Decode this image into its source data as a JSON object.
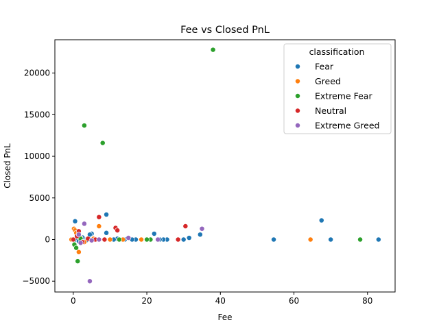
{
  "chart_data": {
    "type": "scatter",
    "title": "Fee vs Closed PnL",
    "xlabel": "Fee",
    "ylabel": "Closed PnL",
    "xlim": [
      -5,
      87.5
    ],
    "ylim": [
      -6300,
      24000
    ],
    "xticks": [
      0,
      20,
      40,
      60,
      80
    ],
    "yticks": [
      -5000,
      0,
      5000,
      10000,
      15000,
      20000
    ],
    "grid": false,
    "legend": {
      "title": "classification",
      "placement": "top-right"
    },
    "series": [
      {
        "name": "Fear",
        "color": "#1f77b4",
        "points": [
          [
            0.5,
            2200
          ],
          [
            9,
            3000
          ],
          [
            67.5,
            2300
          ],
          [
            54.5,
            0
          ],
          [
            70,
            0
          ],
          [
            83,
            0
          ],
          [
            22,
            700
          ],
          [
            34.5,
            600
          ],
          [
            31.5,
            200
          ],
          [
            30,
            0
          ],
          [
            25.5,
            0
          ],
          [
            24.5,
            0
          ],
          [
            23.5,
            0
          ],
          [
            17,
            0
          ],
          [
            16,
            0
          ],
          [
            14,
            0
          ],
          [
            12,
            100
          ],
          [
            11,
            0
          ],
          [
            9,
            800
          ],
          [
            7,
            0
          ],
          [
            6,
            50
          ],
          [
            5,
            700
          ],
          [
            4.5,
            600
          ],
          [
            4,
            0
          ],
          [
            3,
            0
          ],
          [
            2,
            -50
          ],
          [
            1,
            300
          ],
          [
            0.5,
            0
          ],
          [
            2.5,
            250
          ],
          [
            3.5,
            -100
          ],
          [
            1.5,
            -200
          ]
        ]
      },
      {
        "name": "Greed",
        "color": "#ff7f0e",
        "points": [
          [
            0.2,
            1300
          ],
          [
            0.5,
            1100
          ],
          [
            -0.5,
            0
          ],
          [
            7,
            1600
          ],
          [
            64.5,
            0
          ],
          [
            18.5,
            0
          ],
          [
            13.5,
            0
          ],
          [
            4.5,
            0
          ],
          [
            1.5,
            -1500
          ],
          [
            1,
            500
          ],
          [
            2,
            200
          ],
          [
            0.8,
            800
          ],
          [
            3,
            -300
          ],
          [
            5.5,
            100
          ],
          [
            10,
            0
          ]
        ]
      },
      {
        "name": "Extreme Fear",
        "color": "#2ca02c",
        "points": [
          [
            38,
            22800
          ],
          [
            3,
            13700
          ],
          [
            8,
            11600
          ],
          [
            78,
            0
          ],
          [
            21,
            0
          ],
          [
            20,
            0
          ],
          [
            1.2,
            -2600
          ],
          [
            0.3,
            -600
          ],
          [
            0.8,
            -1000
          ],
          [
            2,
            100
          ],
          [
            12.5,
            0
          ],
          [
            8.5,
            0
          ]
        ]
      },
      {
        "name": "Neutral",
        "color": "#d62728",
        "points": [
          [
            7,
            2700
          ],
          [
            30.5,
            1600
          ],
          [
            11.5,
            1400
          ],
          [
            12,
            1100
          ],
          [
            1.5,
            1000
          ],
          [
            28.5,
            0
          ],
          [
            0,
            0
          ],
          [
            8.5,
            0
          ],
          [
            2.5,
            -300
          ],
          [
            1,
            400
          ],
          [
            6,
            0
          ],
          [
            4,
            100
          ]
        ]
      },
      {
        "name": "Extreme Greed",
        "color": "#9467bd",
        "points": [
          [
            3,
            1900
          ],
          [
            35,
            1300
          ],
          [
            4.5,
            -5000
          ],
          [
            15,
            200
          ],
          [
            23,
            0
          ],
          [
            2,
            -400
          ],
          [
            1.5,
            600
          ],
          [
            7,
            0
          ],
          [
            5,
            -100
          ]
        ]
      }
    ]
  }
}
